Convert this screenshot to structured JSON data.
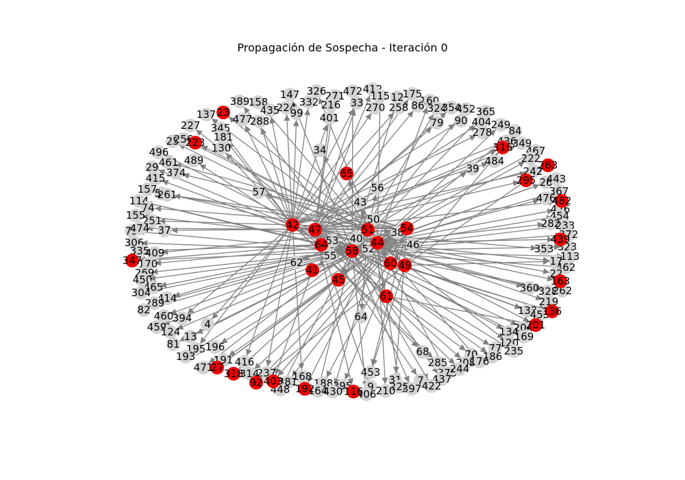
{
  "title": "Propagación de Sospecha - Iteración 0",
  "colors": {
    "suspect": "#ee0000",
    "normal": "#d3d3d3",
    "edge": "#808080"
  },
  "nodes": [
    {
      "id": "389",
      "s": false
    },
    {
      "id": "158",
      "s": false
    },
    {
      "id": "147",
      "s": false
    },
    {
      "id": "326",
      "s": false
    },
    {
      "id": "271",
      "s": false
    },
    {
      "id": "472",
      "s": false
    },
    {
      "id": "412",
      "s": false
    },
    {
      "id": "115",
      "s": false
    },
    {
      "id": "12",
      "s": false
    },
    {
      "id": "175",
      "s": false
    },
    {
      "id": "160",
      "s": false
    },
    {
      "id": "137",
      "s": false
    },
    {
      "id": "23",
      "s": true
    },
    {
      "id": "435",
      "s": false
    },
    {
      "id": "224",
      "s": false
    },
    {
      "id": "332",
      "s": false
    },
    {
      "id": "216",
      "s": false
    },
    {
      "id": "33",
      "s": false
    },
    {
      "id": "270",
      "s": false
    },
    {
      "id": "258",
      "s": false
    },
    {
      "id": "86",
      "s": false
    },
    {
      "id": "324",
      "s": false
    },
    {
      "id": "354",
      "s": false
    },
    {
      "id": "452",
      "s": false
    },
    {
      "id": "365",
      "s": false
    },
    {
      "id": "99",
      "s": false
    },
    {
      "id": "345",
      "s": false
    },
    {
      "id": "477",
      "s": false
    },
    {
      "id": "288",
      "s": false
    },
    {
      "id": "401",
      "s": false
    },
    {
      "id": "79",
      "s": false
    },
    {
      "id": "90",
      "s": false
    },
    {
      "id": "404",
      "s": false
    },
    {
      "id": "249",
      "s": false
    },
    {
      "id": "84",
      "s": false
    },
    {
      "id": "227",
      "s": false
    },
    {
      "id": "25",
      "s": false
    },
    {
      "id": "256",
      "s": false
    },
    {
      "id": "223",
      "s": true
    },
    {
      "id": "181",
      "s": false
    },
    {
      "id": "130",
      "s": false
    },
    {
      "id": "278",
      "s": false
    },
    {
      "id": "436",
      "s": false
    },
    {
      "id": "349",
      "s": false
    },
    {
      "id": "496",
      "s": false
    },
    {
      "id": "34",
      "s": false
    },
    {
      "id": "316",
      "s": true
    },
    {
      "id": "467",
      "s": false
    },
    {
      "id": "222",
      "s": false
    },
    {
      "id": "484",
      "s": false
    },
    {
      "id": "29",
      "s": false
    },
    {
      "id": "461",
      "s": false
    },
    {
      "id": "489",
      "s": false
    },
    {
      "id": "374",
      "s": false
    },
    {
      "id": "263",
      "s": true
    },
    {
      "id": "242",
      "s": false
    },
    {
      "id": "415",
      "s": false
    },
    {
      "id": "65",
      "s": true
    },
    {
      "id": "39",
      "s": false
    },
    {
      "id": "295",
      "s": true
    },
    {
      "id": "26",
      "s": false
    },
    {
      "id": "443",
      "s": false
    },
    {
      "id": "157",
      "s": false
    },
    {
      "id": "59",
      "s": false
    },
    {
      "id": "261",
      "s": false
    },
    {
      "id": "56",
      "s": false
    },
    {
      "id": "367",
      "s": false
    },
    {
      "id": "114",
      "s": false
    },
    {
      "id": "57",
      "s": false
    },
    {
      "id": "43",
      "s": false
    },
    {
      "id": "476",
      "s": false
    },
    {
      "id": "482",
      "s": true
    },
    {
      "id": "74",
      "s": false
    },
    {
      "id": "426",
      "s": false
    },
    {
      "id": "155",
      "s": false
    },
    {
      "id": "454",
      "s": false
    },
    {
      "id": "251",
      "s": false
    },
    {
      "id": "50",
      "s": false
    },
    {
      "id": "282",
      "s": false
    },
    {
      "id": "233",
      "s": false
    },
    {
      "id": "75",
      "s": false
    },
    {
      "id": "474",
      "s": false
    },
    {
      "id": "37",
      "s": false
    },
    {
      "id": "42",
      "s": true
    },
    {
      "id": "47",
      "s": true
    },
    {
      "id": "51",
      "s": true
    },
    {
      "id": "38",
      "s": false
    },
    {
      "id": "54",
      "s": true
    },
    {
      "id": "372",
      "s": false
    },
    {
      "id": "306",
      "s": false
    },
    {
      "id": "64",
      "s": true
    },
    {
      "id": "48",
      "s": false
    },
    {
      "id": "53",
      "s": false
    },
    {
      "id": "40",
      "s": false
    },
    {
      "id": "44",
      "s": true
    },
    {
      "id": "46",
      "s": false
    },
    {
      "id": "439",
      "s": true
    },
    {
      "id": "335",
      "s": false
    },
    {
      "id": "409",
      "s": false
    },
    {
      "id": "58",
      "s": true
    },
    {
      "id": "52",
      "s": false
    },
    {
      "id": "353",
      "s": false
    },
    {
      "id": "323",
      "s": false
    },
    {
      "id": "347",
      "s": true
    },
    {
      "id": "170",
      "s": false
    },
    {
      "id": "55",
      "s": false
    },
    {
      "id": "62",
      "s": false
    },
    {
      "id": "60",
      "s": true
    },
    {
      "id": "49",
      "s": true
    },
    {
      "id": "17",
      "s": false
    },
    {
      "id": "113",
      "s": false
    },
    {
      "id": "269",
      "s": false
    },
    {
      "id": "41",
      "s": true
    },
    {
      "id": "462",
      "s": false
    },
    {
      "id": "450",
      "s": false
    },
    {
      "id": "45",
      "s": true
    },
    {
      "id": "22",
      "s": false
    },
    {
      "id": "163",
      "s": true
    },
    {
      "id": "465",
      "s": false
    },
    {
      "id": "304",
      "s": false
    },
    {
      "id": "360",
      "s": false
    },
    {
      "id": "328",
      "s": false
    },
    {
      "id": "262",
      "s": false
    },
    {
      "id": "414",
      "s": false
    },
    {
      "id": "289",
      "s": false
    },
    {
      "id": "61",
      "s": true
    },
    {
      "id": "219",
      "s": false
    },
    {
      "id": "82",
      "s": false
    },
    {
      "id": "460",
      "s": false
    },
    {
      "id": "394",
      "s": false
    },
    {
      "id": "64b",
      "label": "64",
      "s": false
    },
    {
      "id": "133",
      "s": false
    },
    {
      "id": "453a",
      "label": "453",
      "s": false
    },
    {
      "id": "136",
      "s": true
    },
    {
      "id": "4",
      "s": false
    },
    {
      "id": "459",
      "s": false
    },
    {
      "id": "124",
      "s": false
    },
    {
      "id": "204",
      "s": false
    },
    {
      "id": "201",
      "s": true
    },
    {
      "id": "13",
      "s": false
    },
    {
      "id": "134",
      "s": false
    },
    {
      "id": "169",
      "s": false
    },
    {
      "id": "81",
      "s": false
    },
    {
      "id": "196",
      "s": false
    },
    {
      "id": "120",
      "s": false
    },
    {
      "id": "195",
      "s": false
    },
    {
      "id": "193",
      "s": false
    },
    {
      "id": "235",
      "s": false
    },
    {
      "id": "68",
      "s": false
    },
    {
      "id": "77",
      "s": false
    },
    {
      "id": "70",
      "s": false
    },
    {
      "id": "186",
      "s": false
    },
    {
      "id": "191",
      "s": false
    },
    {
      "id": "416",
      "s": false
    },
    {
      "id": "285",
      "s": false
    },
    {
      "id": "208",
      "s": false
    },
    {
      "id": "176",
      "s": false
    },
    {
      "id": "471",
      "s": false
    },
    {
      "id": "27",
      "s": true
    },
    {
      "id": "237",
      "s": false
    },
    {
      "id": "375",
      "s": false
    },
    {
      "id": "244",
      "s": false
    },
    {
      "id": "318",
      "s": true
    },
    {
      "id": "314",
      "s": false
    },
    {
      "id": "453",
      "s": false
    },
    {
      "id": "437",
      "s": false
    },
    {
      "id": "168",
      "s": false
    },
    {
      "id": "31",
      "s": false
    },
    {
      "id": "7",
      "s": false
    },
    {
      "id": "92",
      "s": true
    },
    {
      "id": "403",
      "s": true
    },
    {
      "id": "381",
      "s": false
    },
    {
      "id": "188",
      "s": false
    },
    {
      "id": "395",
      "s": false
    },
    {
      "id": "9",
      "s": false
    },
    {
      "id": "225",
      "s": false
    },
    {
      "id": "422",
      "s": false
    },
    {
      "id": "448",
      "s": false
    },
    {
      "id": "192",
      "s": true
    },
    {
      "id": "164",
      "s": false
    },
    {
      "id": "430",
      "s": false
    },
    {
      "id": "116",
      "s": true
    },
    {
      "id": "406",
      "s": false
    },
    {
      "id": "210",
      "s": false
    },
    {
      "id": "397",
      "s": false
    }
  ]
}
